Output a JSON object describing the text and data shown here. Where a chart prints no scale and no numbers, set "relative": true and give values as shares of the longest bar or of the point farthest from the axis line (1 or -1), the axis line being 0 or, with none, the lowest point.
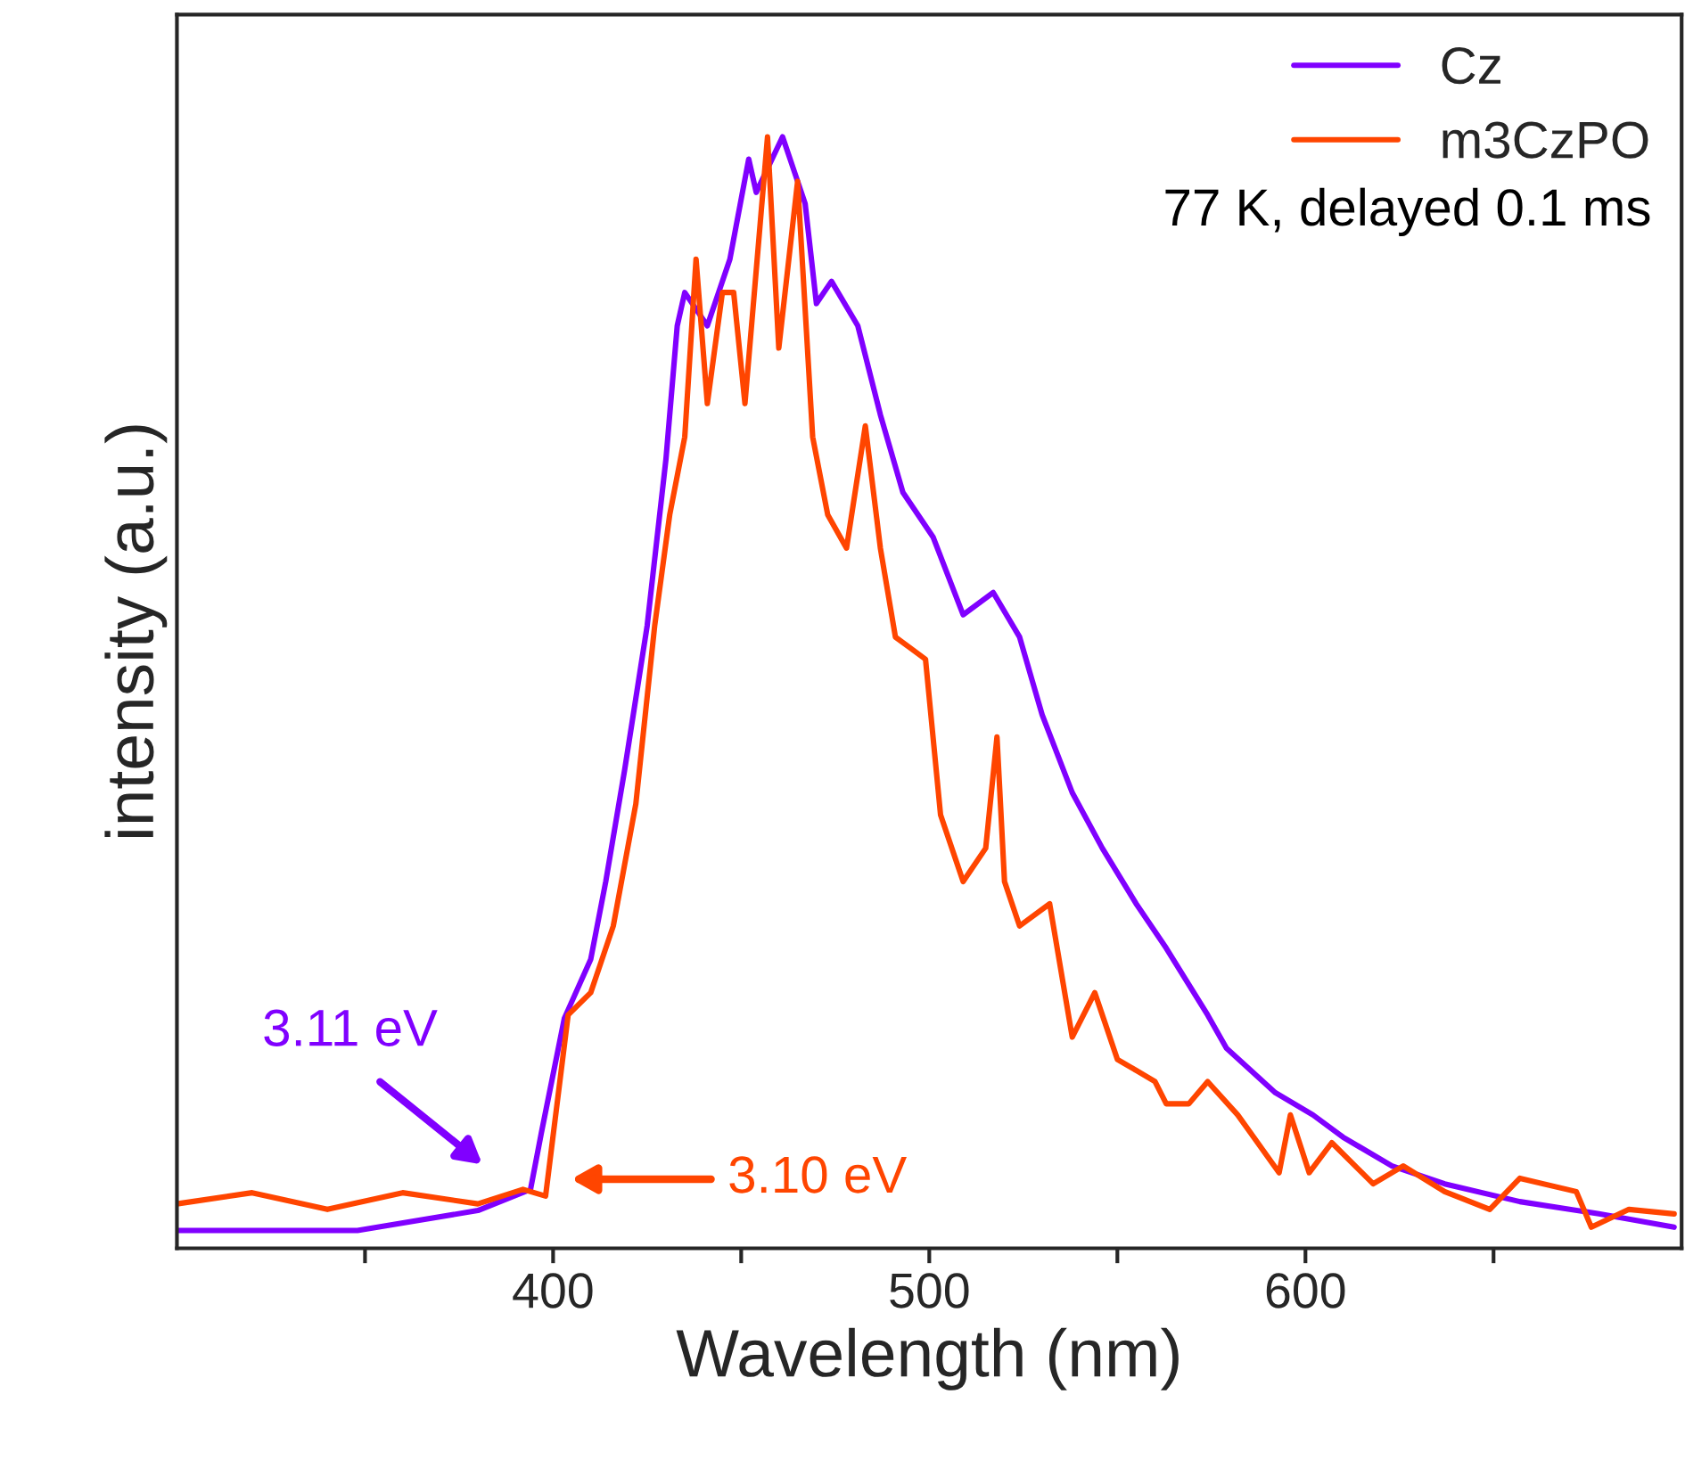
{
  "chart_data": {
    "type": "line",
    "relative": true,
    "xlabel": "Wavelength (nm)",
    "ylabel": "intensity (a.u.)",
    "xlim": [
      300,
      700
    ],
    "xticks": [
      {
        "value": 350,
        "label": null
      },
      400,
      {
        "value": 450,
        "label": null
      },
      500,
      {
        "value": 550,
        "label": null
      },
      600,
      {
        "value": 650,
        "label": null
      }
    ],
    "legend": "top right",
    "marker": "none",
    "line_style": "solid",
    "grid": false,
    "annotations": [
      "3.11 eV",
      "3.10 eV",
      "77 K, delayed 0.1 ms"
    ],
    "series": [
      {
        "name": "Cz",
        "color": "#8000ff",
        "x": [
          300,
          348,
          380,
          394,
          397,
          403,
          410,
          414,
          419,
          425,
          430,
          433,
          435,
          441,
          447,
          452,
          454,
          461,
          467,
          470,
          474,
          481,
          487,
          493,
          501,
          509,
          517,
          524,
          530,
          538,
          546,
          555,
          563,
          574,
          579,
          592,
          602,
          610,
          623,
          637,
          657,
          678,
          698
        ],
        "values": [
          0.016,
          0.016,
          0.034,
          0.053,
          0.106,
          0.207,
          0.26,
          0.33,
          0.43,
          0.56,
          0.71,
          0.83,
          0.86,
          0.83,
          0.89,
          0.98,
          0.95,
          1.0,
          0.94,
          0.85,
          0.87,
          0.83,
          0.75,
          0.68,
          0.64,
          0.57,
          0.59,
          0.55,
          0.48,
          0.41,
          0.36,
          0.31,
          0.27,
          0.21,
          0.18,
          0.14,
          0.12,
          0.1,
          0.074,
          0.058,
          0.042,
          0.031,
          0.019
        ]
      },
      {
        "name": "m3CzPO",
        "color": "#ff4500",
        "x": [
          300,
          320,
          340,
          360,
          380,
          392,
          398,
          404,
          410,
          416,
          422,
          427,
          431,
          435,
          438,
          441,
          445,
          448,
          451,
          457,
          460,
          465,
          469,
          473,
          478,
          483,
          487,
          491,
          499,
          503,
          509,
          515,
          518,
          520,
          524,
          532,
          538,
          544,
          550,
          555,
          560,
          563,
          569,
          574,
          582,
          593,
          596,
          601,
          607,
          618,
          626,
          637,
          649,
          657,
          672,
          676,
          686,
          698
        ],
        "values": [
          0.04,
          0.05,
          0.035,
          0.05,
          0.04,
          0.053,
          0.047,
          0.21,
          0.23,
          0.29,
          0.4,
          0.56,
          0.66,
          0.73,
          0.89,
          0.76,
          0.86,
          0.86,
          0.76,
          1.0,
          0.81,
          0.96,
          0.73,
          0.66,
          0.63,
          0.74,
          0.63,
          0.55,
          0.53,
          0.39,
          0.33,
          0.36,
          0.46,
          0.33,
          0.29,
          0.31,
          0.19,
          0.23,
          0.17,
          0.16,
          0.15,
          0.13,
          0.13,
          0.15,
          0.12,
          0.068,
          0.12,
          0.068,
          0.095,
          0.058,
          0.074,
          0.051,
          0.035,
          0.063,
          0.051,
          0.019,
          0.035,
          0.031
        ]
      }
    ]
  }
}
